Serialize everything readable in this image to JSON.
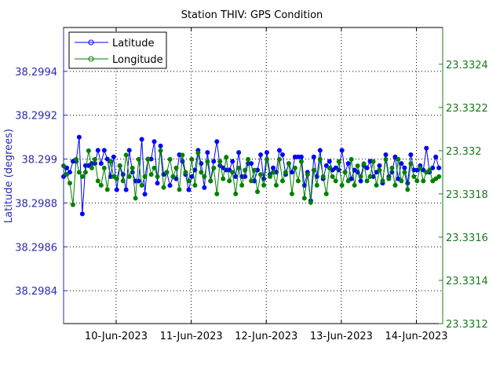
{
  "chart_data": {
    "type": "line",
    "title": "Station THIV: GPS Condition",
    "left_axis": {
      "label": "Latitude (degrees)",
      "ylim": [
        38.29825,
        38.2996
      ],
      "ticks": [
        "38.2984",
        "38.2986",
        "38.2988",
        "38.299",
        "38.2992",
        "38.2994"
      ],
      "tick_values": [
        38.2984,
        38.2986,
        38.2988,
        38.299,
        38.2992,
        38.2994
      ],
      "color": "#2b2bb0"
    },
    "right_axis": {
      "label": "",
      "ylim": [
        23.3312,
        23.33257
      ],
      "ticks": [
        "23.3312",
        "23.3314",
        "23.3316",
        "23.3318",
        "23.332",
        "23.3322",
        "23.3324"
      ],
      "tick_values": [
        23.3312,
        23.3314,
        23.3316,
        23.3318,
        23.332,
        23.3322,
        23.3324
      ],
      "color": "#1a7a1a"
    },
    "x_axis": {
      "range_days": [
        0,
        5.05
      ],
      "ticks": [
        "10-Jun-2023",
        "11-Jun-2023",
        "12-Jun-2023",
        "13-Jun-2023",
        "14-Jun-2023"
      ],
      "tick_values": [
        0.7,
        1.7,
        2.7,
        3.7,
        4.7
      ]
    },
    "grid": true,
    "legend": {
      "placement": "top-left",
      "entries": [
        "Latitude",
        "Longitude"
      ]
    },
    "series": [
      {
        "name": "Latitude",
        "color": "#0000ff",
        "axis": "left",
        "x": [
          0.0,
          0.042,
          0.083,
          0.125,
          0.167,
          0.208,
          0.25,
          0.292,
          0.333,
          0.375,
          0.417,
          0.458,
          0.5,
          0.542,
          0.583,
          0.625,
          0.667,
          0.708,
          0.75,
          0.792,
          0.833,
          0.875,
          0.917,
          0.958,
          1.0,
          1.042,
          1.083,
          1.125,
          1.167,
          1.208,
          1.25,
          1.292,
          1.333,
          1.375,
          1.417,
          1.458,
          1.5,
          1.542,
          1.583,
          1.625,
          1.667,
          1.708,
          1.75,
          1.792,
          1.833,
          1.875,
          1.917,
          1.958,
          2.0,
          2.042,
          2.083,
          2.125,
          2.167,
          2.208,
          2.25,
          2.292,
          2.333,
          2.375,
          2.417,
          2.458,
          2.5,
          2.542,
          2.583,
          2.625,
          2.667,
          2.708,
          2.75,
          2.792,
          2.833,
          2.875,
          2.917,
          2.958,
          3.0,
          3.042,
          3.083,
          3.125,
          3.167,
          3.208,
          3.25,
          3.292,
          3.333,
          3.375,
          3.417,
          3.458,
          3.5,
          3.542,
          3.583,
          3.625,
          3.667,
          3.708,
          3.75,
          3.792,
          3.833,
          3.875,
          3.917,
          3.958,
          4.0,
          4.042,
          4.083,
          4.125,
          4.167,
          4.208,
          4.25,
          4.292,
          4.333,
          4.375,
          4.417,
          4.458,
          4.5,
          4.542,
          4.583,
          4.625,
          4.667,
          4.708,
          4.75,
          4.792,
          4.833,
          4.875,
          4.917,
          4.958,
          5.0
        ],
        "values": [
          38.29892,
          38.29896,
          38.29894,
          38.29899,
          38.29899,
          38.2991,
          38.29875,
          38.29897,
          38.29897,
          38.29898,
          38.29898,
          38.29904,
          38.29898,
          38.29904,
          38.299,
          38.29892,
          38.29901,
          38.29886,
          38.29897,
          38.29893,
          38.29886,
          38.29904,
          38.29894,
          38.2989,
          38.2989,
          38.29909,
          38.29884,
          38.299,
          38.299,
          38.29908,
          38.29889,
          38.29906,
          38.29893,
          38.29894,
          38.29888,
          38.29892,
          38.29891,
          38.29902,
          38.29899,
          38.29893,
          38.29886,
          38.29892,
          38.29895,
          38.29904,
          38.29898,
          38.29887,
          38.29903,
          38.2989,
          38.29899,
          38.29908,
          38.29897,
          38.29896,
          38.29895,
          38.29895,
          38.29899,
          38.29892,
          38.29903,
          38.29892,
          38.29892,
          38.29898,
          38.29898,
          38.2989,
          38.29895,
          38.29902,
          38.29891,
          38.29903,
          38.29893,
          38.29896,
          38.29894,
          38.29904,
          38.29902,
          38.29893,
          38.29898,
          38.29894,
          38.29901,
          38.29901,
          38.29901,
          38.29888,
          38.29894,
          38.29881,
          38.29901,
          38.29892,
          38.29904,
          38.29891,
          38.29897,
          38.29899,
          38.29895,
          38.29896,
          38.29895,
          38.29904,
          38.29894,
          38.29898,
          38.29891,
          38.29895,
          38.29894,
          38.2989,
          38.29897,
          38.29896,
          38.29899,
          38.29892,
          38.29894,
          38.29897,
          38.29889,
          38.29902,
          38.29892,
          38.29894,
          38.29901,
          38.29891,
          38.29898,
          38.29896,
          38.29889,
          38.29902,
          38.29895,
          38.29895,
          38.29897,
          38.29895,
          38.29905,
          38.29894,
          38.29896,
          38.29901,
          38.29896
        ]
      },
      {
        "name": "Longitude",
        "color": "#008000",
        "axis": "right",
        "x": [
          0.0,
          0.042,
          0.083,
          0.125,
          0.167,
          0.208,
          0.25,
          0.292,
          0.333,
          0.375,
          0.417,
          0.458,
          0.5,
          0.542,
          0.583,
          0.625,
          0.667,
          0.708,
          0.75,
          0.792,
          0.833,
          0.875,
          0.917,
          0.958,
          1.0,
          1.042,
          1.083,
          1.125,
          1.167,
          1.208,
          1.25,
          1.292,
          1.333,
          1.375,
          1.417,
          1.458,
          1.5,
          1.542,
          1.583,
          1.625,
          1.667,
          1.708,
          1.75,
          1.792,
          1.833,
          1.875,
          1.917,
          1.958,
          2.0,
          2.042,
          2.083,
          2.125,
          2.167,
          2.208,
          2.25,
          2.292,
          2.333,
          2.375,
          2.417,
          2.458,
          2.5,
          2.542,
          2.583,
          2.625,
          2.667,
          2.708,
          2.75,
          2.792,
          2.833,
          2.875,
          2.917,
          2.958,
          3.0,
          3.042,
          3.083,
          3.125,
          3.167,
          3.208,
          3.25,
          3.292,
          3.333,
          3.375,
          3.417,
          3.458,
          3.5,
          3.542,
          3.583,
          3.625,
          3.667,
          3.708,
          3.75,
          3.792,
          3.833,
          3.875,
          3.917,
          3.958,
          4.0,
          4.042,
          4.083,
          4.125,
          4.167,
          4.208,
          4.25,
          4.292,
          4.333,
          4.375,
          4.417,
          4.458,
          4.5,
          4.542,
          4.583,
          4.625,
          4.667,
          4.708,
          4.75,
          4.792,
          4.833,
          4.875,
          4.917,
          4.958,
          5.0
        ],
        "values": [
          23.33193,
          23.33189,
          23.33185,
          23.33175,
          23.33196,
          23.3319,
          23.33188,
          23.3319,
          23.332,
          23.33192,
          23.33196,
          23.33186,
          23.33184,
          23.33192,
          23.33182,
          23.33195,
          23.33188,
          23.33187,
          23.33193,
          23.33186,
          23.33198,
          23.33188,
          23.33192,
          23.33178,
          23.33196,
          23.33184,
          23.33188,
          23.33196,
          23.33189,
          23.33192,
          23.33188,
          23.332,
          23.33183,
          23.3319,
          23.33196,
          23.33188,
          23.33192,
          23.33182,
          23.33198,
          23.3319,
          23.33186,
          23.33196,
          23.33184,
          23.33199,
          23.3319,
          23.33188,
          23.33195,
          23.33186,
          23.33192,
          23.3318,
          23.33195,
          23.33187,
          23.33197,
          23.33186,
          23.3319,
          23.3318,
          23.33192,
          23.33184,
          23.33191,
          23.33196,
          23.33186,
          23.33191,
          23.33181,
          23.33189,
          23.33184,
          23.33196,
          23.33188,
          23.3319,
          23.33184,
          23.33196,
          23.33186,
          23.3319,
          23.33194,
          23.3318,
          23.33192,
          23.33186,
          23.33195,
          23.33178,
          23.33189,
          23.33176,
          23.33191,
          23.33184,
          23.33196,
          23.33188,
          23.3318,
          23.33192,
          23.33188,
          23.33186,
          23.33195,
          23.33184,
          23.3319,
          23.33186,
          23.33196,
          23.33184,
          23.33193,
          23.33188,
          23.33194,
          23.33186,
          23.33188,
          23.33195,
          23.33184,
          23.33191,
          23.33186,
          23.33196,
          23.33187,
          23.33192,
          23.33184,
          23.33196,
          23.33186,
          23.3319,
          23.33182,
          23.33194,
          23.33188,
          23.33186,
          23.33192,
          23.33186,
          23.3319,
          23.33191,
          23.33186,
          23.33187,
          23.33188
        ]
      }
    ]
  }
}
